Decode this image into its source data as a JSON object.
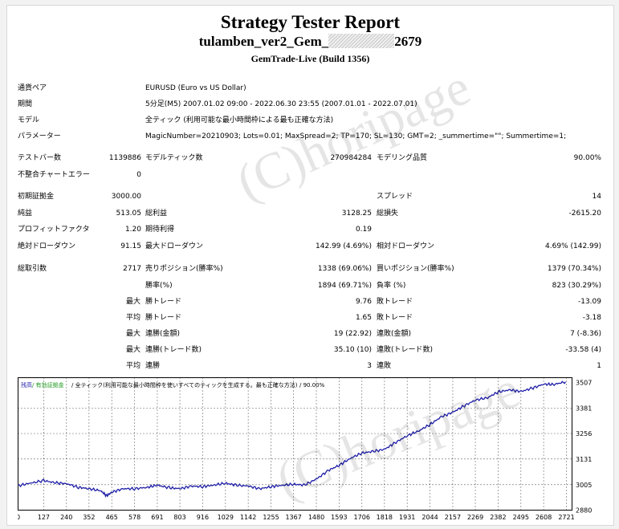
{
  "report": {
    "title": "Strategy Tester Report",
    "ea_name_prefix": "tulamben_ver2_Gem_",
    "ea_name_suffix": "2679",
    "server": "GemTrade-Live (Build 1356)"
  },
  "info": {
    "pair_label": "通貨ペア",
    "pair_value": "EURUSD (Euro vs US Dollar)",
    "period_label": "期間",
    "period_value": "5分足(M5) 2007.01.02 09:00 - 2022.06.30 23:55 (2007.01.01 - 2022.07.01)",
    "model_label": "モデル",
    "model_value": "全ティック (利用可能な最小時間枠による最も正確な方法)",
    "params_label": "パラメーター",
    "params_value": "MagicNumber=20210903; Lots=0.01; MaxSpread=2; TP=170; SL=130; GMT=2; _summertime=\"\"; Summertime=1;"
  },
  "stats": {
    "bars_label": "テストバー数",
    "bars_value": "1139886",
    "ticks_label": "モデルティック数",
    "ticks_value": "270984284",
    "quality_label": "モデリング品質",
    "quality_value": "90.00%",
    "mismatch_label": "不整合チャートエラー",
    "mismatch_value": "0",
    "deposit_label": "初期証拠金",
    "deposit_value": "3000.00",
    "spread_label": "スプレッド",
    "spread_value": "14",
    "net_label": "純益",
    "net_value": "513.05",
    "gross_profit_label": "総利益",
    "gross_profit_value": "3128.25",
    "gross_loss_label": "総損失",
    "gross_loss_value": "-2615.20",
    "pf_label": "プロフィットファクタ",
    "pf_value": "1.20",
    "expected_label": "期待利得",
    "expected_value": "0.19",
    "abs_dd_label": "絶対ドローダウン",
    "abs_dd_value": "91.15",
    "max_dd_label": "最大ドローダウン",
    "max_dd_value": "142.99 (4.69%)",
    "rel_dd_label": "相対ドローダウン",
    "rel_dd_value": "4.69% (142.99)",
    "total_trades_label": "総取引数",
    "total_trades_value": "2717",
    "short_label": "売りポジション(勝率%)",
    "short_value": "1338 (69.06%)",
    "long_label": "買いポジション(勝率%)",
    "long_value": "1379 (70.34%)",
    "win_rate_label": "勝率(%)",
    "win_rate_value": "1894 (69.71%)",
    "loss_rate_label": "負率 (%)",
    "loss_rate_value": "823 (30.29%)",
    "largest_prefix": "最大",
    "largest_win_label": "勝トレード",
    "largest_win_value": "9.76",
    "largest_loss_label": "敗トレード",
    "largest_loss_value": "-13.09",
    "average_prefix": "平均",
    "avg_win_label": "勝トレード",
    "avg_win_value": "1.65",
    "avg_loss_label": "敗トレード",
    "avg_loss_value": "-3.18",
    "max_cons_prefix": "最大",
    "max_cons_wins_label": "連勝(金額)",
    "max_cons_wins_value": "19 (22.92)",
    "max_cons_losses_label": "連敗(金額)",
    "max_cons_losses_value": "7 (-8.36)",
    "max_cons2_prefix": "最大",
    "max_cons_profit_label": "連勝(トレード数)",
    "max_cons_profit_value": "35.10 (10)",
    "max_cons_loss_label": "連敗(トレード数)",
    "max_cons_loss_value": "-33.58 (4)",
    "avg_cons_prefix": "平均",
    "avg_cons_wins_label": "連勝",
    "avg_cons_wins_value": "3",
    "avg_cons_losses_label": "連敗",
    "avg_cons_losses_value": "1"
  },
  "watermark": "(C)horipage",
  "chart_data": {
    "type": "line",
    "legend_balance": "残高",
    "legend_equity": "/ 有効証拠金",
    "legend_model": "/ 全ティック(利用可能な最小時間枠を使いすべてのティックを生成する。最も正確な方法)",
    "legend_quality": "/ 90.00%",
    "x_ticks": [
      "0",
      "127",
      "240",
      "352",
      "465",
      "578",
      "691",
      "803",
      "916",
      "1029",
      "1142",
      "1255",
      "1367",
      "1480",
      "1593",
      "1706",
      "1818",
      "1931",
      "2044",
      "2157",
      "2269",
      "2382",
      "2495",
      "2608",
      "2721"
    ],
    "y_ticks": [
      "3507",
      "3381",
      "3256",
      "3131",
      "3005",
      "2880"
    ],
    "xlim": [
      0,
      2717
    ],
    "ylim": [
      2880,
      3530
    ],
    "series": [
      {
        "color": "#1f1fa8",
        "x": [
          0,
          60,
          127,
          180,
          240,
          300,
          352,
          410,
          440,
          465,
          520,
          578,
          640,
          691,
          750,
          803,
          860,
          916,
          970,
          1029,
          1080,
          1142,
          1200,
          1255,
          1310,
          1367,
          1420,
          1480,
          1540,
          1593,
          1650,
          1706,
          1760,
          1818,
          1870,
          1931,
          1990,
          2044,
          2100,
          2157,
          2210,
          2269,
          2330,
          2382,
          2440,
          2495,
          2550,
          2608,
          2660,
          2717
        ],
        "y": [
          3000,
          3012,
          3025,
          3015,
          3010,
          2992,
          2985,
          2975,
          2950,
          2968,
          2985,
          2985,
          2992,
          3002,
          2990,
          2985,
          2998,
          2995,
          3003,
          3012,
          3003,
          2998,
          2985,
          2995,
          3002,
          3007,
          3003,
          3032,
          3075,
          3100,
          3135,
          3160,
          3168,
          3178,
          3210,
          3245,
          3270,
          3300,
          3338,
          3360,
          3390,
          3420,
          3432,
          3460,
          3470,
          3462,
          3478,
          3498,
          3497,
          3510
        ]
      }
    ]
  }
}
